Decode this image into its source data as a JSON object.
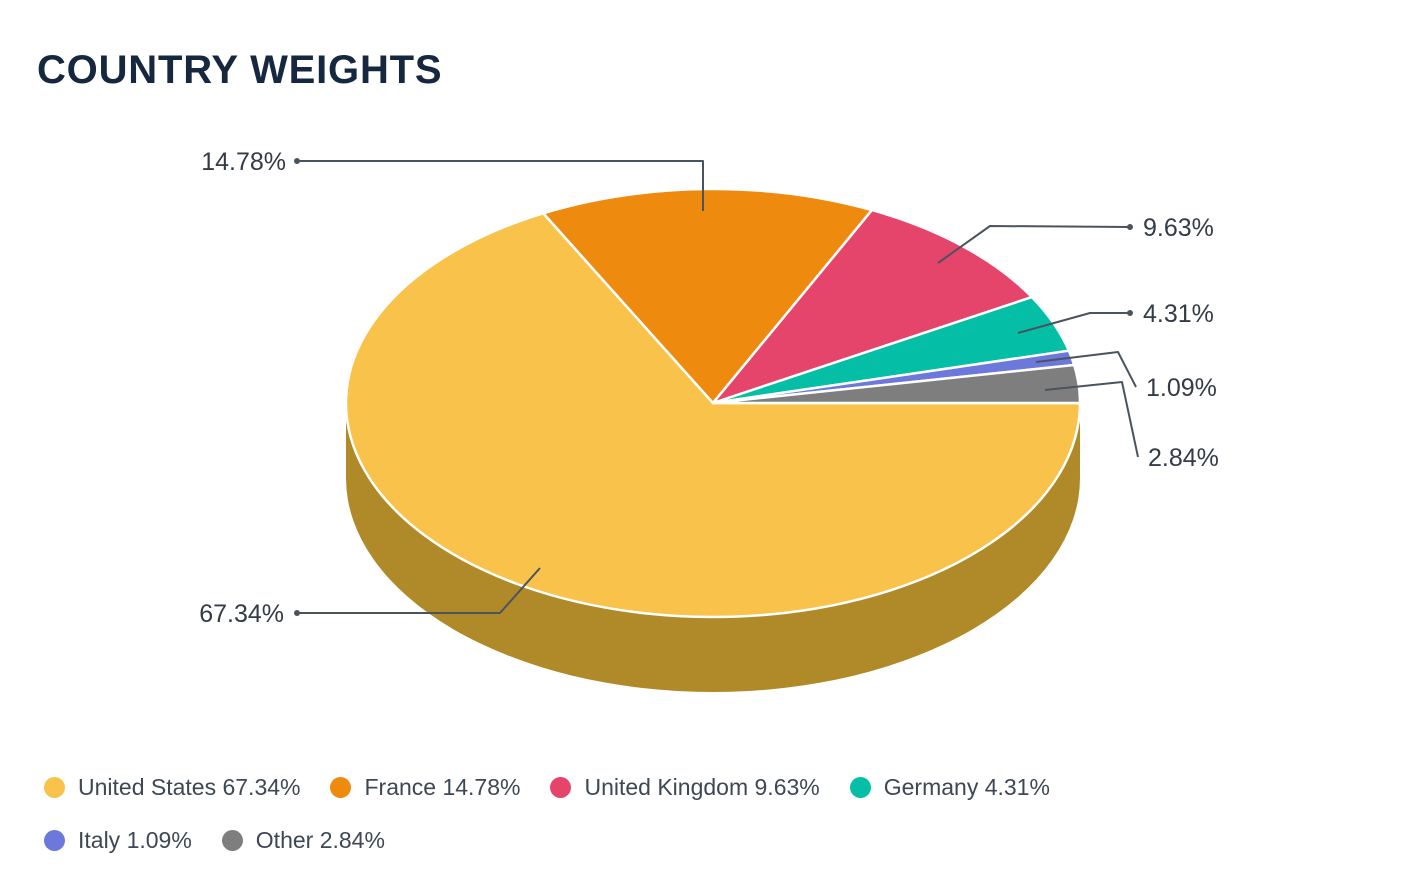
{
  "chart_data": {
    "type": "pie",
    "title": "COUNTRY WEIGHTS",
    "unit": "%",
    "effect": "3d",
    "start_angle_deg": 90,
    "direction": "clockwise",
    "legend_position": "bottom",
    "slices": [
      {
        "name": "United States",
        "value": 67.34,
        "label": "67.34%",
        "color": "#F8C24B",
        "side_color": "#B08A28"
      },
      {
        "name": "France",
        "value": 14.78,
        "label": "14.78%",
        "color": "#EE8A0E"
      },
      {
        "name": "United Kingdom",
        "value": 9.63,
        "label": "9.63%",
        "color": "#E5456A"
      },
      {
        "name": "Germany",
        "value": 4.31,
        "label": "4.31%",
        "color": "#04BFA6"
      },
      {
        "name": "Italy",
        "value": 1.09,
        "label": "1.09%",
        "color": "#6D79DA"
      },
      {
        "name": "Other",
        "value": 2.84,
        "label": "2.84%",
        "color": "#7E7E7E"
      }
    ]
  },
  "legend": {
    "items": [
      {
        "label": "United States 67.34%",
        "color": "#F8C24B",
        "row": 1
      },
      {
        "label": "France 14.78%",
        "color": "#EE8A0E",
        "row": 1
      },
      {
        "label": "United Kingdom 9.63%",
        "color": "#E5456A",
        "row": 1
      },
      {
        "label": "Germany 4.31%",
        "color": "#04BFA6",
        "row": 1
      },
      {
        "label": "Italy 1.09%",
        "color": "#6D79DA",
        "row": 2
      },
      {
        "label": "Other 2.84%",
        "color": "#7E7E7E",
        "row": 2
      }
    ]
  }
}
